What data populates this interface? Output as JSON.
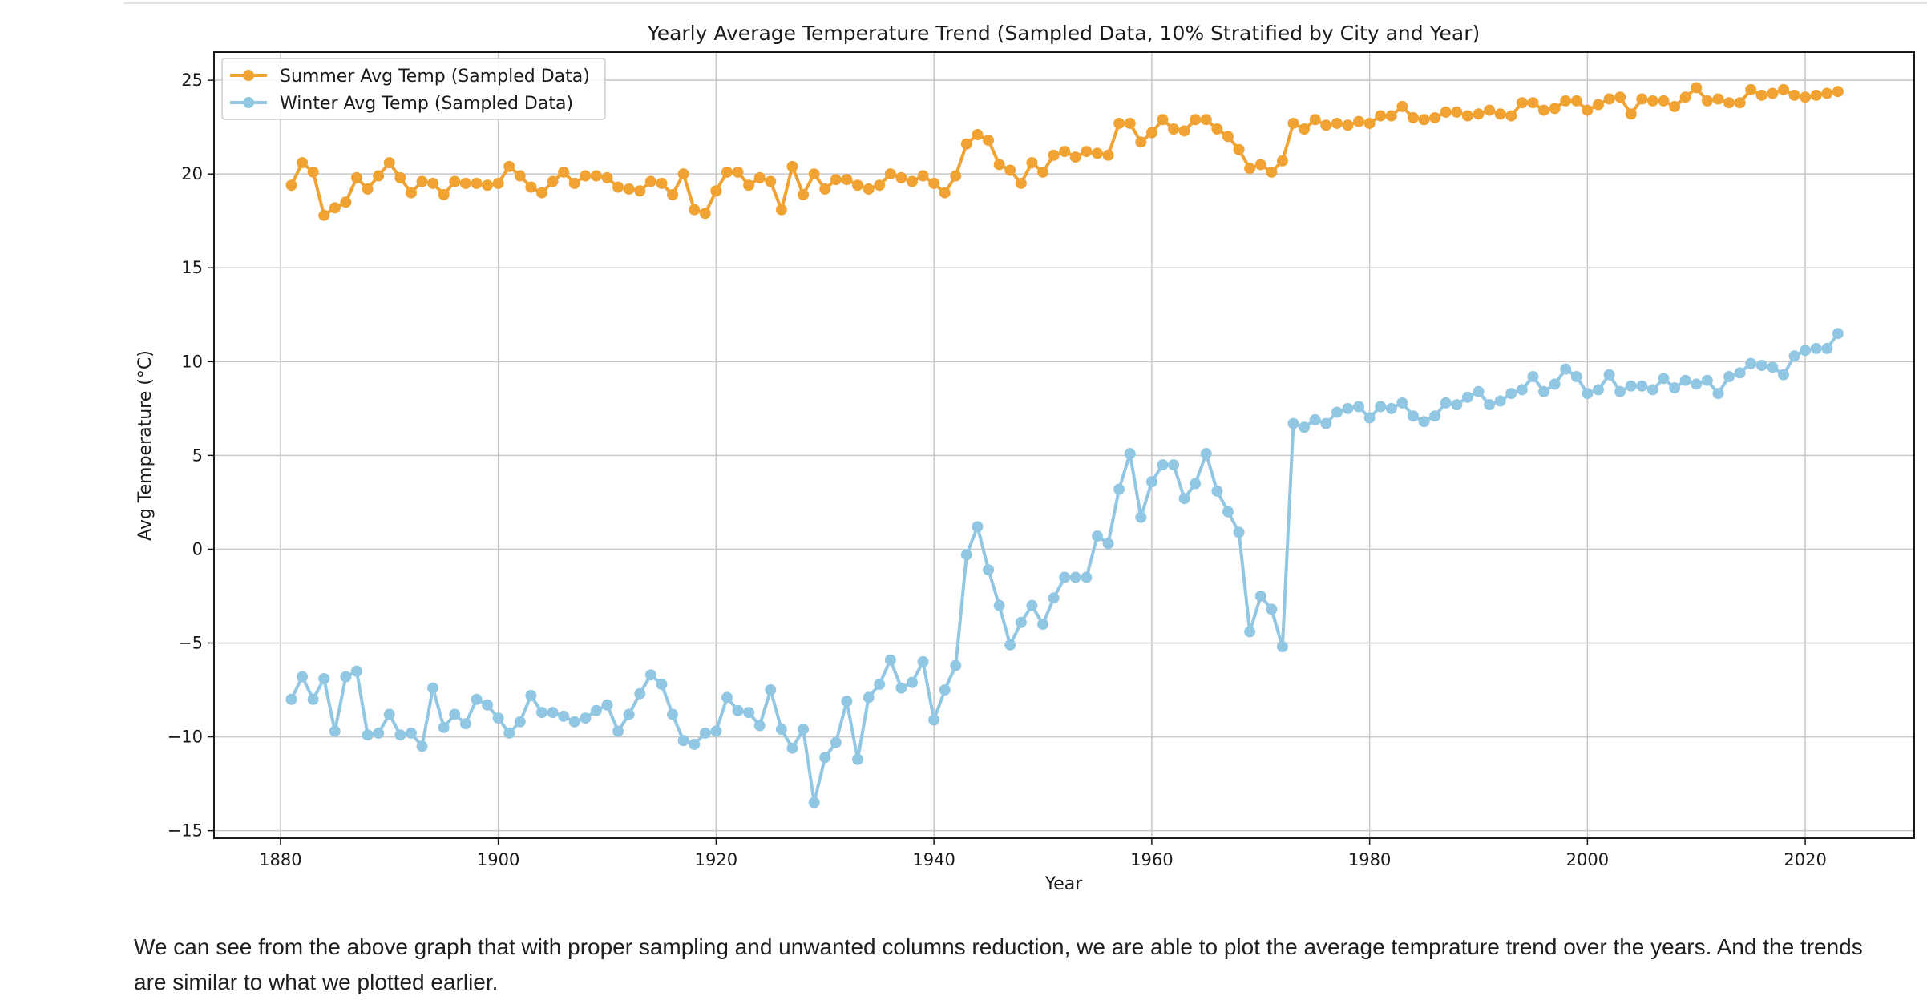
{
  "caption": "We can see from the above graph that with proper sampling and unwanted columns reduction, we are able to plot the average temprature trend over the years. And the trends are similar to what we plotted earlier.",
  "chart_data": {
    "type": "line",
    "title": "Yearly Average Temperature Trend (Sampled Data, 10% Stratified by City and Year)",
    "xlabel": "Year",
    "ylabel": "Avg Temperature (°C)",
    "xlim": [
      1873.9,
      2030
    ],
    "ylim": [
      -15.4,
      26.5
    ],
    "xticks": [
      1880,
      1900,
      1920,
      1940,
      1960,
      1980,
      2000,
      2020
    ],
    "yticks": [
      -15,
      -10,
      -5,
      0,
      5,
      10,
      15,
      20,
      25
    ],
    "xtick_labels": [
      "1880",
      "1900",
      "1920",
      "1940",
      "1960",
      "1980",
      "2000",
      "2020"
    ],
    "ytick_labels": [
      "−15",
      "−10",
      "−5",
      "0",
      "5",
      "10",
      "15",
      "20",
      "25"
    ],
    "grid": true,
    "legend_position": "upper-left",
    "x_start": 1881,
    "series": [
      {
        "name": "Summer Avg Temp (Sampled Data)",
        "color": "#f0a232",
        "values": [
          19.4,
          20.6,
          20.1,
          17.8,
          18.2,
          18.5,
          19.8,
          19.2,
          19.9,
          20.6,
          19.8,
          19.0,
          19.6,
          19.5,
          18.9,
          19.6,
          19.5,
          19.5,
          19.4,
          19.5,
          20.4,
          19.9,
          19.3,
          19.0,
          19.6,
          20.1,
          19.5,
          19.9,
          19.9,
          19.8,
          19.3,
          19.2,
          19.1,
          19.6,
          19.5,
          18.9,
          20.0,
          18.1,
          17.9,
          19.1,
          20.1,
          20.1,
          19.4,
          19.8,
          19.6,
          18.1,
          20.4,
          18.9,
          20.0,
          19.2,
          19.7,
          19.7,
          19.4,
          19.2,
          19.4,
          20.0,
          19.8,
          19.6,
          19.9,
          19.5,
          19.0,
          19.9,
          21.6,
          22.1,
          21.8,
          20.5,
          20.2,
          19.5,
          20.6,
          20.1,
          21.0,
          21.2,
          20.9,
          21.2,
          21.1,
          21.0,
          22.7,
          22.7,
          21.7,
          22.2,
          22.9,
          22.4,
          22.3,
          22.9,
          22.9,
          22.4,
          22.0,
          21.3,
          20.3,
          20.5,
          20.1,
          20.7,
          22.7,
          22.4,
          22.9,
          22.6,
          22.7,
          22.6,
          22.8,
          22.7,
          23.1,
          23.1,
          23.6,
          23.0,
          22.9,
          23.0,
          23.3,
          23.3,
          23.1,
          23.2,
          23.4,
          23.2,
          23.1,
          23.8,
          23.8,
          23.4,
          23.5,
          23.9,
          23.9,
          23.4,
          23.7,
          24.0,
          24.1,
          23.2,
          24.0,
          23.9,
          23.9,
          23.6,
          24.1,
          24.6,
          23.9,
          24.0,
          23.8,
          23.8,
          24.5,
          24.2,
          24.3,
          24.5,
          24.2,
          24.1,
          24.2,
          24.3,
          24.4
        ]
      },
      {
        "name": "Winter Avg Temp (Sampled Data)",
        "color": "#92c7e4",
        "values": [
          -8.0,
          -6.8,
          -8.0,
          -6.9,
          -9.7,
          -6.8,
          -6.5,
          -9.9,
          -9.8,
          -8.8,
          -9.9,
          -9.8,
          -10.5,
          -7.4,
          -9.5,
          -8.8,
          -9.3,
          -8.0,
          -8.3,
          -9.0,
          -9.8,
          -9.2,
          -7.8,
          -8.7,
          -8.7,
          -8.9,
          -9.2,
          -9.0,
          -8.6,
          -8.3,
          -9.7,
          -8.8,
          -7.7,
          -6.7,
          -7.2,
          -8.8,
          -10.2,
          -10.4,
          -9.8,
          -9.7,
          -7.9,
          -8.6,
          -8.7,
          -9.4,
          -7.5,
          -9.6,
          -10.6,
          -9.6,
          -13.5,
          -11.1,
          -10.3,
          -8.1,
          -11.2,
          -7.9,
          -7.2,
          -5.9,
          -7.4,
          -7.1,
          -6.0,
          -9.1,
          -7.5,
          -6.2,
          -0.3,
          1.2,
          -1.1,
          -3.0,
          -5.1,
          -3.9,
          -3.0,
          -4.0,
          -2.6,
          -1.5,
          -1.5,
          -1.5,
          0.7,
          0.3,
          3.2,
          5.1,
          1.7,
          3.6,
          4.5,
          4.5,
          2.7,
          3.5,
          5.1,
          3.1,
          2.0,
          0.9,
          -4.4,
          -2.5,
          -3.2,
          -5.2,
          6.7,
          6.5,
          6.9,
          6.7,
          7.3,
          7.5,
          7.6,
          7.0,
          7.6,
          7.5,
          7.8,
          7.1,
          6.8,
          7.1,
          7.8,
          7.7,
          8.1,
          8.4,
          7.7,
          7.9,
          8.3,
          8.5,
          9.2,
          8.4,
          8.8,
          9.6,
          9.2,
          8.3,
          8.5,
          9.3,
          8.4,
          8.7,
          8.7,
          8.5,
          9.1,
          8.6,
          9.0,
          8.8,
          9.0,
          8.3,
          9.2,
          9.4,
          9.9,
          9.8,
          9.7,
          9.3,
          10.3,
          10.6,
          10.7,
          10.7,
          11.5
        ]
      }
    ]
  }
}
